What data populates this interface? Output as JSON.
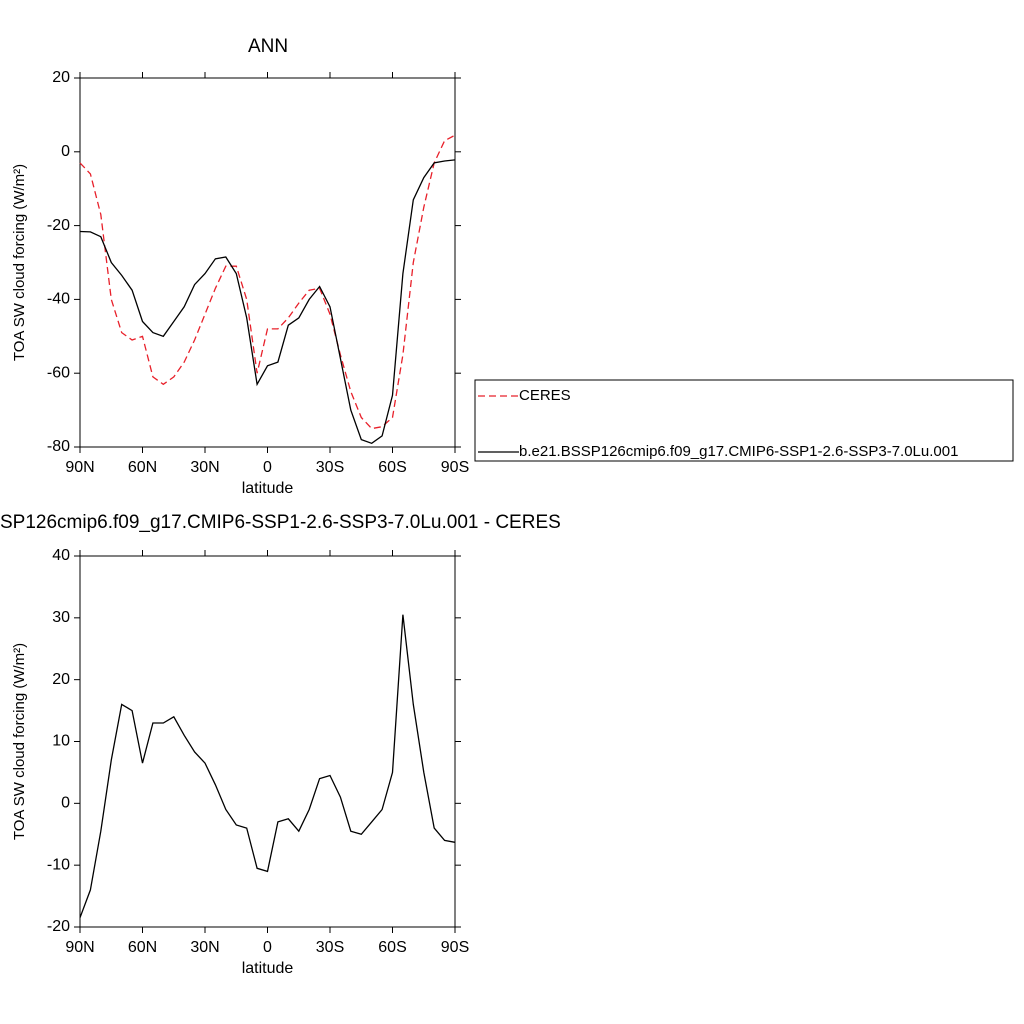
{
  "chart_data": [
    {
      "type": "line",
      "title": "ANN",
      "xlabel": "latitude",
      "ylabel": "TOA SW cloud forcing (W/m²)",
      "x": [
        90,
        85,
        80,
        75,
        70,
        65,
        60,
        55,
        50,
        45,
        40,
        35,
        30,
        25,
        20,
        15,
        10,
        5,
        0,
        -5,
        -10,
        -15,
        -20,
        -25,
        -30,
        -35,
        -40,
        -45,
        -50,
        -55,
        -60,
        -65,
        -70,
        -75,
        -80,
        -85,
        -90
      ],
      "xlim": [
        90,
        -90
      ],
      "xticks": [
        {
          "value": 90,
          "label": "90N"
        },
        {
          "value": 60,
          "label": "60N"
        },
        {
          "value": 30,
          "label": "30N"
        },
        0,
        {
          "value": -30,
          "label": "30S"
        },
        {
          "value": -60,
          "label": "60S"
        },
        {
          "value": -90,
          "label": "90S"
        }
      ],
      "ylim": [
        -80,
        20
      ],
      "yticks": [
        -80,
        -60,
        -40,
        -20,
        0,
        20
      ],
      "legend": "right",
      "series": [
        {
          "name": "CERES",
          "color": "#e8202a",
          "line_style": "dashed",
          "values": [
            -3,
            -6,
            -17,
            -40,
            -49,
            -51,
            -50,
            -61,
            -63,
            -61,
            -57,
            -51,
            -44,
            -37,
            -31,
            -31,
            -40,
            -60,
            -48,
            -48,
            -45,
            -41,
            -37.5,
            -37,
            -44,
            -55,
            -65,
            -72,
            -75,
            -74.5,
            -72,
            -55,
            -30,
            -15,
            -3,
            3,
            4.5
          ]
        },
        {
          "name": "b.e21.BSSP126cmip6.f09_g17.CMIP6-SSP1-2.6-SSP3-7.0Lu.001",
          "color": "#000000",
          "line_style": "solid",
          "values": [
            -21.6,
            -21.7,
            -23,
            -30,
            -33.5,
            -37.5,
            -46,
            -49,
            -50,
            -46,
            -42,
            -36,
            -33,
            -29,
            -28.5,
            -33,
            -45,
            -63,
            -58,
            -57,
            -47,
            -45,
            -40,
            -36.5,
            -42,
            -56,
            -70,
            -78,
            -79,
            -77,
            -66,
            -33,
            -13,
            -7,
            -3,
            -2.5,
            -2.2
          ]
        }
      ]
    },
    {
      "type": "line",
      "title": "SP126cmip6.f09_g17.CMIP6-SSP1-2.6-SSP3-7.0Lu.001 - CERES",
      "xlabel": "latitude",
      "ylabel": "TOA SW cloud forcing (W/m²)",
      "x": [
        90,
        85,
        80,
        75,
        70,
        65,
        60,
        55,
        50,
        45,
        40,
        35,
        30,
        25,
        20,
        15,
        10,
        5,
        0,
        -5,
        -10,
        -15,
        -20,
        -25,
        -30,
        -35,
        -40,
        -45,
        -50,
        -55,
        -60,
        -65,
        -70,
        -75,
        -80,
        -85,
        -90
      ],
      "xlim": [
        90,
        -90
      ],
      "xticks": [
        {
          "value": 90,
          "label": "90N"
        },
        {
          "value": 60,
          "label": "60N"
        },
        {
          "value": 30,
          "label": "30N"
        },
        0,
        {
          "value": -30,
          "label": "30S"
        },
        {
          "value": -60,
          "label": "60S"
        },
        {
          "value": -90,
          "label": "90S"
        }
      ],
      "ylim": [
        -20,
        40
      ],
      "yticks": [
        -20,
        -10,
        0,
        10,
        20,
        30,
        40
      ],
      "series": [
        {
          "color": "#000000",
          "line_style": "solid",
          "values": [
            -18.5,
            -14,
            -4.5,
            7,
            16,
            15,
            6.5,
            13,
            13,
            14,
            11,
            8.3,
            6.5,
            3,
            -1,
            -3.5,
            -4,
            -10.5,
            -11,
            -3,
            -2.5,
            -4.5,
            -1,
            4,
            4.5,
            1,
            -4.5,
            -5,
            -3,
            -1,
            5,
            30.5,
            16,
            5,
            -4,
            -6,
            -6.3
          ]
        }
      ]
    }
  ]
}
